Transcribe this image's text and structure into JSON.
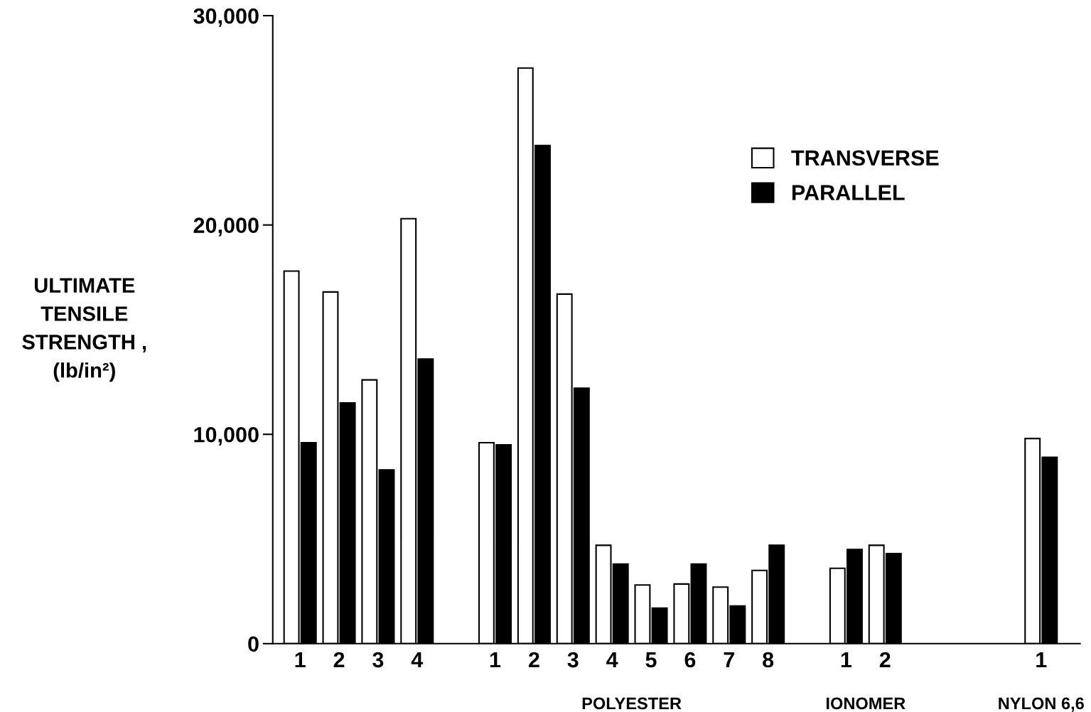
{
  "chart_data": {
    "type": "bar",
    "categories": [
      "1",
      "2",
      "3",
      "4",
      null,
      "1",
      "2",
      "3",
      "4",
      "5",
      "6",
      "7",
      "8",
      null,
      "1",
      "2",
      null,
      null,
      null,
      "1"
    ],
    "series": [
      {
        "name": "TRANSVERSE",
        "color": "#ffffff",
        "values": [
          17800,
          16800,
          12600,
          20300,
          null,
          9600,
          27500,
          16700,
          4700,
          2800,
          2850,
          2700,
          3500,
          null,
          3600,
          4700,
          null,
          null,
          null,
          9800
        ]
      },
      {
        "name": "PARALLEL",
        "color": "#000000",
        "values": [
          9600,
          11500,
          8300,
          13600,
          null,
          9500,
          23800,
          12200,
          3800,
          1700,
          3800,
          1800,
          4700,
          null,
          4500,
          4300,
          null,
          null,
          null,
          8900
        ]
      }
    ],
    "ylabel": "ULTIMATE\nTENSILE\nSTRENGTH ,\n(lb/in²)",
    "ylim": [
      0,
      30000
    ],
    "yticks": [
      0,
      {
        "value": 10000,
        "label": "10,000"
      },
      {
        "value": 20000,
        "label": "20,000"
      },
      {
        "value": 30000,
        "label": "30,000"
      }
    ],
    "annotations": [
      "POLYESTER",
      "IONOMER",
      "NYLON 6,6"
    ],
    "legend": "top right",
    "grid": false
  }
}
